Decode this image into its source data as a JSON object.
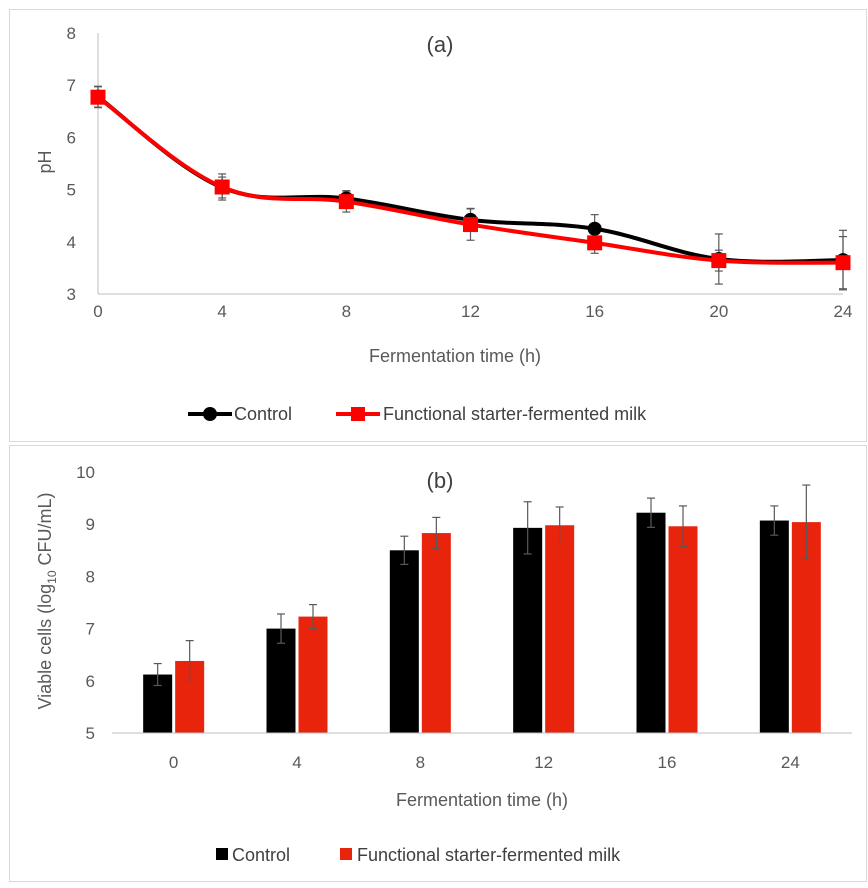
{
  "colors": {
    "control": "#000000",
    "functional_line": "#ff0000",
    "functional_bar": "#e8240c",
    "axis": "#bfbfbf",
    "error_bar": "#595959",
    "panel_border": "#d9d9d9"
  },
  "chart_data": [
    {
      "type": "line",
      "panel_label": "(a)",
      "xlabel": "Fermentation time (h)",
      "ylabel": "pH",
      "xlim": [
        0,
        24
      ],
      "ylim": [
        3,
        8
      ],
      "xticks": [
        "0",
        "4",
        "8",
        "12",
        "16",
        "20",
        "24"
      ],
      "yticks": [
        "3",
        "4",
        "5",
        "6",
        "7",
        "8"
      ],
      "x": [
        0,
        4,
        8,
        12,
        16,
        20,
        24
      ],
      "grid": false,
      "legend_position": "bottom",
      "series": [
        {
          "name": "Control",
          "marker": "circle",
          "values": [
            6.78,
            5.04,
            4.83,
            4.42,
            4.25,
            3.67,
            3.65
          ],
          "errors": [
            0.2,
            0.2,
            0.15,
            0.22,
            0.27,
            0.48,
            0.57
          ]
        },
        {
          "name": "Functional starter-fermented milk",
          "marker": "square",
          "values": [
            6.77,
            5.05,
            4.77,
            4.33,
            3.98,
            3.64,
            3.6
          ],
          "errors": [
            0.2,
            0.25,
            0.2,
            0.3,
            0.2,
            0.2,
            0.5
          ]
        }
      ]
    },
    {
      "type": "bar",
      "panel_label": "(b)",
      "xlabel": "Fermentation time (h)",
      "ylabel_main": "Viable cells (log",
      "ylabel_sub": "10",
      "ylabel_tail": " CFU/mL)",
      "ylim": [
        5,
        10
      ],
      "yticks": [
        "5",
        "6",
        "7",
        "8",
        "9",
        "10"
      ],
      "categories": [
        "0",
        "4",
        "8",
        "12",
        "16",
        "24"
      ],
      "grid": false,
      "legend_position": "bottom",
      "series": [
        {
          "name": "Control",
          "values": [
            6.12,
            7.0,
            8.5,
            8.93,
            9.22,
            9.07
          ],
          "errors": [
            0.21,
            0.28,
            0.27,
            0.5,
            0.28,
            0.28
          ]
        },
        {
          "name": "Functional starter-fermented milk",
          "values": [
            6.38,
            7.23,
            8.83,
            8.98,
            8.96,
            9.04
          ],
          "errors": [
            0.39,
            0.23,
            0.3,
            0.35,
            0.39,
            0.71
          ]
        }
      ]
    }
  ]
}
